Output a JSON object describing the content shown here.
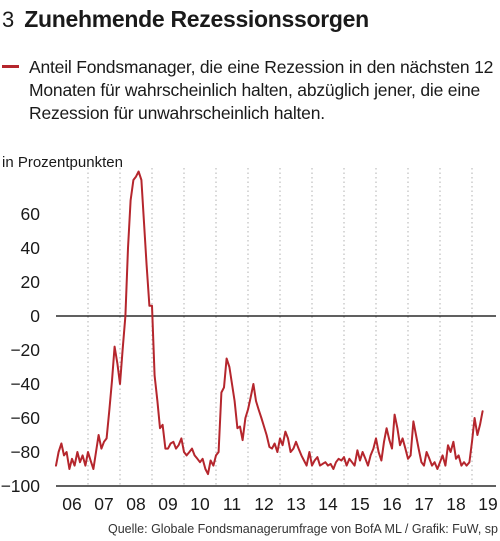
{
  "figure": {
    "number": "3",
    "title": "Zunehmende Rezessionssorgen",
    "legend_text": "Anteil Fondsmanager, die eine Rezession in den nächsten 12 Monaten für wahrscheinlich halten, abzüglich jener, die eine Rezession für unwahrscheinlich halten.",
    "unit_label": "in Prozentpunkten",
    "source": "Quelle: Globale Fondsmanagerumfrage von BofA ML / Grafik: FuW, sp"
  },
  "colors": {
    "series": "#b5262d",
    "grid": "#b0b0b0",
    "axis": "#000000"
  },
  "chart_data": {
    "type": "line",
    "title": "Zunehmende Rezessionssorgen",
    "ylabel": "in Prozentpunkten",
    "ylim": [
      -100,
      80
    ],
    "yticks": [
      -100,
      -80,
      -60,
      -40,
      -20,
      0,
      20,
      40,
      60
    ],
    "xlim": [
      2006,
      2019.75
    ],
    "xticks": [
      {
        "x": 2006.5,
        "label": "06"
      },
      {
        "x": 2007.5,
        "label": "07"
      },
      {
        "x": 2008.5,
        "label": "08"
      },
      {
        "x": 2009.5,
        "label": "09"
      },
      {
        "x": 2010.5,
        "label": "10"
      },
      {
        "x": 2011.5,
        "label": "11"
      },
      {
        "x": 2012.5,
        "label": "12"
      },
      {
        "x": 2013.5,
        "label": "13"
      },
      {
        "x": 2014.5,
        "label": "14"
      },
      {
        "x": 2015.5,
        "label": "15"
      },
      {
        "x": 2016.5,
        "label": "16"
      },
      {
        "x": 2017.5,
        "label": "17"
      },
      {
        "x": 2018.5,
        "label": "18"
      },
      {
        "x": 2019.5,
        "label": "19"
      }
    ],
    "grid": "vertical-dotted",
    "zero_line": true,
    "series": [
      {
        "color": "#b5262d",
        "x": [
          2006.0,
          2006.08,
          2006.17,
          2006.25,
          2006.33,
          2006.42,
          2006.5,
          2006.58,
          2006.67,
          2006.75,
          2006.83,
          2006.92,
          2007.0,
          2007.08,
          2007.17,
          2007.25,
          2007.33,
          2007.42,
          2007.5,
          2007.58,
          2007.67,
          2007.75,
          2007.83,
          2007.92,
          2008.0,
          2008.08,
          2008.17,
          2008.25,
          2008.33,
          2008.42,
          2008.5,
          2008.58,
          2008.67,
          2008.75,
          2008.83,
          2008.92,
          2009.0,
          2009.08,
          2009.17,
          2009.25,
          2009.33,
          2009.42,
          2009.5,
          2009.58,
          2009.67,
          2009.75,
          2009.83,
          2009.92,
          2010.0,
          2010.08,
          2010.17,
          2010.25,
          2010.33,
          2010.42,
          2010.5,
          2010.58,
          2010.67,
          2010.75,
          2010.83,
          2010.92,
          2011.0,
          2011.08,
          2011.17,
          2011.25,
          2011.33,
          2011.42,
          2011.5,
          2011.58,
          2011.67,
          2011.75,
          2011.83,
          2011.92,
          2012.0,
          2012.08,
          2012.17,
          2012.25,
          2012.33,
          2012.42,
          2012.5,
          2012.58,
          2012.67,
          2012.75,
          2012.83,
          2012.92,
          2013.0,
          2013.08,
          2013.17,
          2013.25,
          2013.33,
          2013.42,
          2013.5,
          2013.58,
          2013.67,
          2013.75,
          2013.83,
          2013.92,
          2014.0,
          2014.08,
          2014.17,
          2014.25,
          2014.33,
          2014.42,
          2014.5,
          2014.58,
          2014.67,
          2014.75,
          2014.83,
          2014.92,
          2015.0,
          2015.08,
          2015.17,
          2015.25,
          2015.33,
          2015.42,
          2015.5,
          2015.58,
          2015.67,
          2015.75,
          2015.83,
          2015.92,
          2016.0,
          2016.08,
          2016.17,
          2016.25,
          2016.33,
          2016.42,
          2016.5,
          2016.58,
          2016.67,
          2016.75,
          2016.83,
          2016.92,
          2017.0,
          2017.08,
          2017.17,
          2017.25,
          2017.33,
          2017.42,
          2017.5,
          2017.58,
          2017.67,
          2017.75,
          2017.83,
          2017.92,
          2018.0,
          2018.08,
          2018.17,
          2018.25,
          2018.33,
          2018.42,
          2018.5,
          2018.58,
          2018.67,
          2018.75,
          2018.83,
          2018.92,
          2019.0,
          2019.08,
          2019.17,
          2019.25,
          2019.33
        ],
        "y": [
          -88,
          -80,
          -75,
          -82,
          -80,
          -90,
          -84,
          -88,
          -80,
          -86,
          -82,
          -88,
          -80,
          -85,
          -90,
          -80,
          -70,
          -78,
          -74,
          -72,
          -55,
          -38,
          -18,
          -28,
          -40,
          -20,
          0,
          40,
          68,
          80,
          82,
          85,
          80,
          55,
          30,
          6,
          6,
          -35,
          -50,
          -66,
          -64,
          -78,
          -78,
          -75,
          -74,
          -78,
          -76,
          -72,
          -80,
          -82,
          -80,
          -78,
          -82,
          -84,
          -86,
          -84,
          -90,
          -93,
          -85,
          -88,
          -82,
          -80,
          -45,
          -42,
          -25,
          -30,
          -40,
          -50,
          -66,
          -65,
          -73,
          -60,
          -55,
          -48,
          -40,
          -50,
          -55,
          -60,
          -65,
          -70,
          -77,
          -78,
          -75,
          -80,
          -72,
          -76,
          -68,
          -72,
          -80,
          -78,
          -74,
          -78,
          -82,
          -85,
          -88,
          -80,
          -88,
          -85,
          -83,
          -88,
          -87,
          -86,
          -88,
          -87,
          -90,
          -86,
          -84,
          -85,
          -83,
          -88,
          -84,
          -86,
          -88,
          -79,
          -85,
          -80,
          -84,
          -88,
          -82,
          -78,
          -72,
          -80,
          -85,
          -74,
          -66,
          -73,
          -78,
          -58,
          -66,
          -76,
          -72,
          -78,
          -84,
          -82,
          -62,
          -70,
          -78,
          -86,
          -88,
          -80,
          -84,
          -88,
          -86,
          -90,
          -86,
          -82,
          -88,
          -76,
          -80,
          -74,
          -84,
          -82,
          -88,
          -86,
          -88,
          -86,
          -74,
          -60,
          -70,
          -64,
          -56
        ]
      }
    ]
  }
}
